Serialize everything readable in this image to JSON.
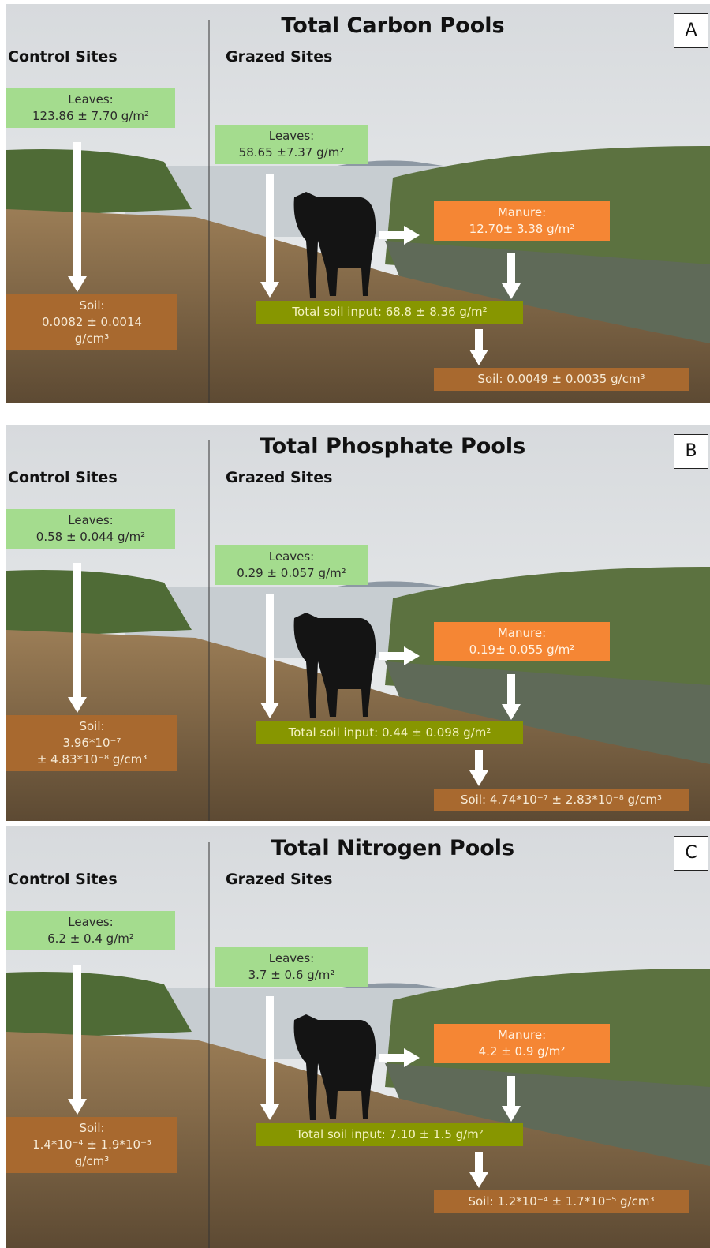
{
  "panels": [
    {
      "title": "Total Carbon Pools",
      "label": "A",
      "control_heading": "Control Sites",
      "grazed_heading": "Grazed Sites",
      "control_leaves": [
        "Leaves:",
        "123.86 ± 7.70 g/m²"
      ],
      "control_soil": [
        "Soil:",
        "0.0082 ± 0.0014",
        "g/cm³"
      ],
      "grazed_leaves": [
        "Leaves:",
        "58.65 ±7.37 g/m²"
      ],
      "manure": [
        "Manure:",
        "12.70± 3.38 g/m²"
      ],
      "total_input": [
        "Total soil input: 68.8 ± 8.36 g/m²"
      ],
      "grazed_soil": [
        "Soil:   0.0049 ± 0.0035 g/cm³"
      ]
    },
    {
      "title": "Total Phosphate Pools",
      "label": "B",
      "control_heading": "Control Sites",
      "grazed_heading": "Grazed Sites",
      "control_leaves": [
        "Leaves:",
        "0.58 ± 0.044 g/m²"
      ],
      "control_soil": [
        "Soil:",
        "3.96*10⁻⁷",
        "± 4.83*10⁻⁸ g/cm³"
      ],
      "grazed_leaves": [
        "Leaves:",
        "0.29 ± 0.057 g/m²"
      ],
      "manure": [
        "Manure:",
        "0.19± 0.055 g/m²"
      ],
      "total_input": [
        "Total soil input: 0.44 ± 0.098 g/m²"
      ],
      "grazed_soil": [
        "Soil:  4.74*10⁻⁷ ± 2.83*10⁻⁸ g/cm³"
      ]
    },
    {
      "title": "Total Nitrogen Pools",
      "label": "C",
      "control_heading": "Control Sites",
      "grazed_heading": "Grazed Sites",
      "control_leaves": [
        "Leaves:",
        "6.2 ± 0.4 g/m²"
      ],
      "control_soil": [
        "Soil:",
        "1.4*10⁻⁴ ± 1.9*10⁻⁵",
        "g/cm³"
      ],
      "grazed_leaves": [
        "Leaves:",
        "3.7 ± 0.6 g/m²"
      ],
      "manure": [
        "Manure:",
        "4.2 ± 0.9 g/m²"
      ],
      "total_input": [
        "Total soil input: 7.10 ± 1.5 g/m²"
      ],
      "grazed_soil": [
        "Soil:   1.2*10⁻⁴ ± 1.7*10⁻⁵ g/cm³"
      ]
    }
  ]
}
